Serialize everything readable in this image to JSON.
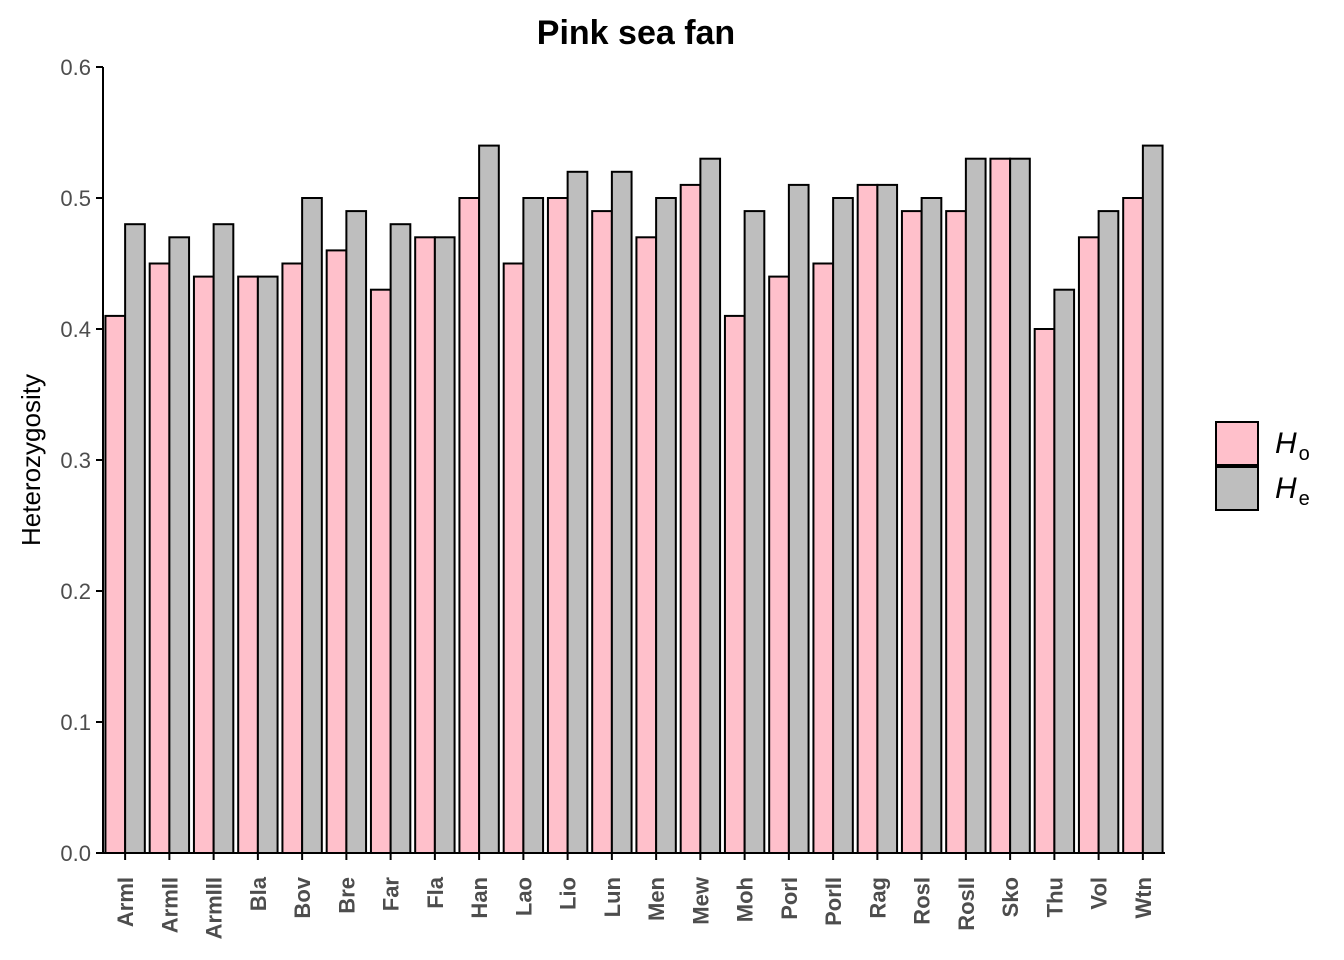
{
  "chart_data": {
    "type": "bar",
    "title": "Pink sea fan",
    "xlabel": "",
    "ylabel": "Heterozygosity",
    "ylim": [
      0,
      0.6
    ],
    "yticks": [
      "0.0",
      "0.1",
      "0.2",
      "0.3",
      "0.4",
      "0.5",
      "0.6"
    ],
    "grid": false,
    "legend_position": "right",
    "categories": [
      "ArmI",
      "ArmII",
      "ArmIII",
      "Bla",
      "Bov",
      "Bre",
      "Far",
      "Fla",
      "Han",
      "Lao",
      "Lio",
      "Lun",
      "Men",
      "Mew",
      "Moh",
      "PorI",
      "PorII",
      "Rag",
      "RosI",
      "RosII",
      "Sko",
      "Thu",
      "Vol",
      "Wtn"
    ],
    "series": [
      {
        "legend_main": "H",
        "legend_sub": "o",
        "color": "#ffc0cb",
        "values": [
          0.41,
          0.45,
          0.44,
          0.44,
          0.45,
          0.46,
          0.43,
          0.47,
          0.5,
          0.45,
          0.5,
          0.49,
          0.47,
          0.51,
          0.41,
          0.44,
          0.45,
          0.51,
          0.49,
          0.49,
          0.53,
          0.4,
          0.47,
          0.5
        ]
      },
      {
        "legend_main": "H",
        "legend_sub": "e",
        "color": "#bebebe",
        "values": [
          0.48,
          0.47,
          0.48,
          0.44,
          0.5,
          0.49,
          0.48,
          0.47,
          0.54,
          0.5,
          0.52,
          0.52,
          0.5,
          0.53,
          0.49,
          0.51,
          0.5,
          0.51,
          0.5,
          0.53,
          0.53,
          0.43,
          0.49,
          0.54
        ]
      }
    ]
  }
}
